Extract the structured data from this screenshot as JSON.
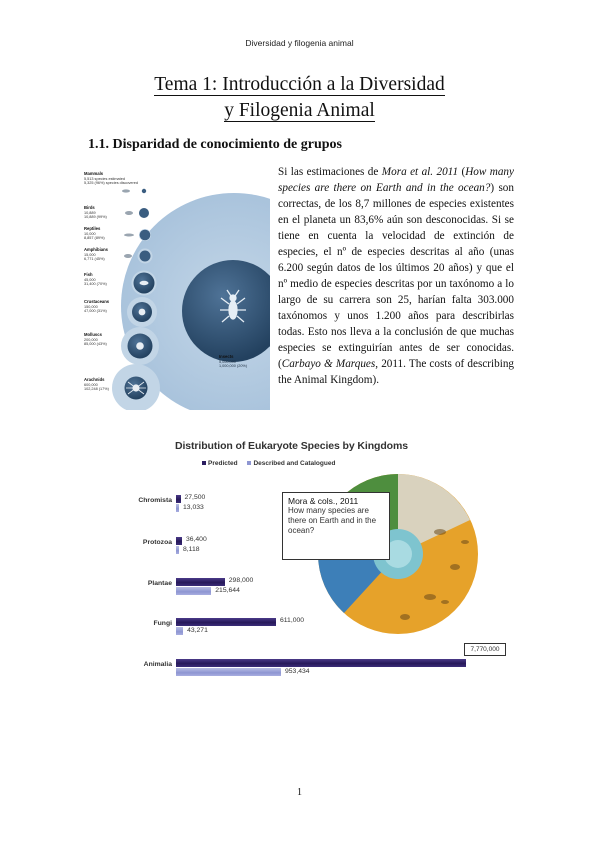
{
  "header": {
    "running_title": "Diversidad y filogenia animal"
  },
  "title": {
    "line1": "Tema 1: Introducción a la Diversidad",
    "line2": "y Filogenia Animal"
  },
  "section": {
    "heading": "1.1. Disparidad de conocimiento de grupos"
  },
  "paragraph": {
    "p1": "Si las estimaciones de ",
    "p2": "Mora et al. 2011",
    "p3": " (",
    "p4": "How many species are there on Earth and in the ocean?",
    "p5": ") son correctas, de los 8,7 millones de especies existentes en el planeta un 83,6% aún son desconocidas. Si se tiene en cuenta la velocidad de extinción de especies, el nº de especies descritas al año (unas 6.200 según datos de los últimos 20 años) y que el nº medio de especies descritas por un taxónomo a lo largo de su carrera son 25, harían falta 303.000 taxónomos y unos 1.200 años para describirlas todas. Esto nos lleva a la conclusión de que muchas especies se extinguirían antes de ser conocidas. (",
    "p6": "Carbayo & Marques",
    "p7": ", 2011. The costs of describing the Animal Kingdom)."
  },
  "figure1": {
    "labels": [
      {
        "name": "Mammals",
        "line": "5,513 species estimated",
        "line2": "5,325 (96%) species discovered"
      },
      {
        "name": "Birds",
        "line": "10,889",
        "line2": "10,889 (99%)"
      },
      {
        "name": "Reptiles",
        "line": "10,000",
        "line2": "8,857 (89%)"
      },
      {
        "name": "Amphibians",
        "line": "15,000",
        "line2": "6,771 (45%)"
      },
      {
        "name": "Fish",
        "line": "45,000",
        "line2": "31,400 (70%)"
      },
      {
        "name": "Crustaceans",
        "line": "150,000",
        "line2": "47,000 (31%)"
      },
      {
        "name": "Molluscs",
        "line": "200,000",
        "line2": "85,000 (43%)"
      },
      {
        "name": "Arachnids",
        "line": "600,000",
        "line2": "102,248 (17%)"
      }
    ],
    "insects": {
      "name": "Insects",
      "line": "5,000,000",
      "line2": "1,000,000 (20%)"
    }
  },
  "figure2": {
    "chart_title": "Distribution of Eukaryote Species by Kingdoms",
    "callout": {
      "title": "Mora & cols., 2011",
      "question": "How many species are there on Earth and in the ocean?"
    },
    "colors": {
      "predicted": "#2b1d60",
      "described": "#9aa1da"
    },
    "chart_data": {
      "type": "bar",
      "title": "Distribution of Eukaryote Species by Kingdoms",
      "categories": [
        "Chromista",
        "Protozoa",
        "Plantae",
        "Fungi",
        "Animalia"
      ],
      "series": [
        {
          "name": "Predicted",
          "values": [
            27500,
            36400,
            298000,
            611000,
            7770000
          ]
        },
        {
          "name": "Described and Catalogued",
          "values": [
            13033,
            8118,
            215644,
            43271,
            953434
          ]
        }
      ],
      "value_labels": {
        "predicted": [
          "27,500",
          "36,400",
          "298,000",
          "611,000",
          "7,770,000"
        ],
        "described": [
          "13,033",
          "8,118",
          "215,644",
          "43,271",
          "953,434"
        ]
      },
      "legend": [
        "Predicted",
        "Described and Catalogued"
      ],
      "legend_position": "top",
      "orientation": "horizontal"
    }
  },
  "footer": {
    "page_number": "1"
  }
}
